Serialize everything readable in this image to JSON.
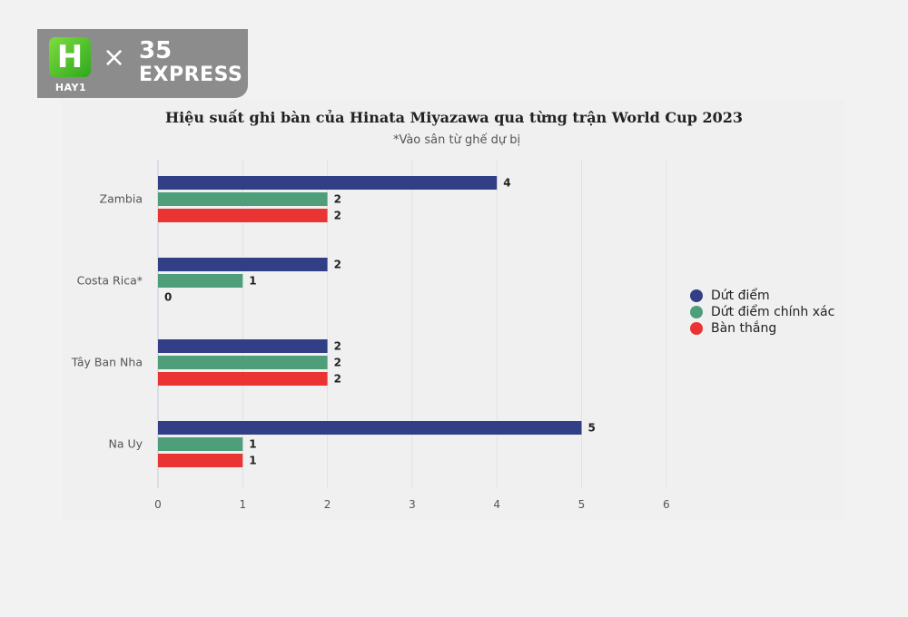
{
  "logo": {
    "hay1_mark": "H",
    "hay1_text": "HAY1",
    "separator": "×",
    "express_number": "35",
    "express_word": "EXPRESS"
  },
  "colors": {
    "dut_diem": "#323f87",
    "chinh_xac": "#4f9e7a",
    "ban_thang": "#ea3434",
    "grid": "#dde2ec",
    "axis": "#c3cad8"
  },
  "chart_data": {
    "type": "bar",
    "orientation": "horizontal",
    "title": "Hiệu suất ghi bàn của Hinata Miyazawa qua từng trận World Cup 2023",
    "subtitle": "*Vào sân từ ghế dự bị",
    "categories": [
      "Zambia",
      "Costa Rica*",
      "Tây Ban Nha",
      "Na Uy"
    ],
    "series": [
      {
        "name": "Dứt điểm",
        "values": [
          4,
          2,
          2,
          5
        ]
      },
      {
        "name": "Dứt điểm chính xác",
        "values": [
          2,
          1,
          2,
          1
        ]
      },
      {
        "name": "Bàn thắng",
        "values": [
          2,
          0,
          2,
          1
        ]
      }
    ],
    "xlim": [
      0,
      6
    ],
    "xticks": [
      0,
      1,
      2,
      3,
      4,
      5,
      6
    ],
    "grid": true,
    "legend_position": "right",
    "data_labels": true
  }
}
